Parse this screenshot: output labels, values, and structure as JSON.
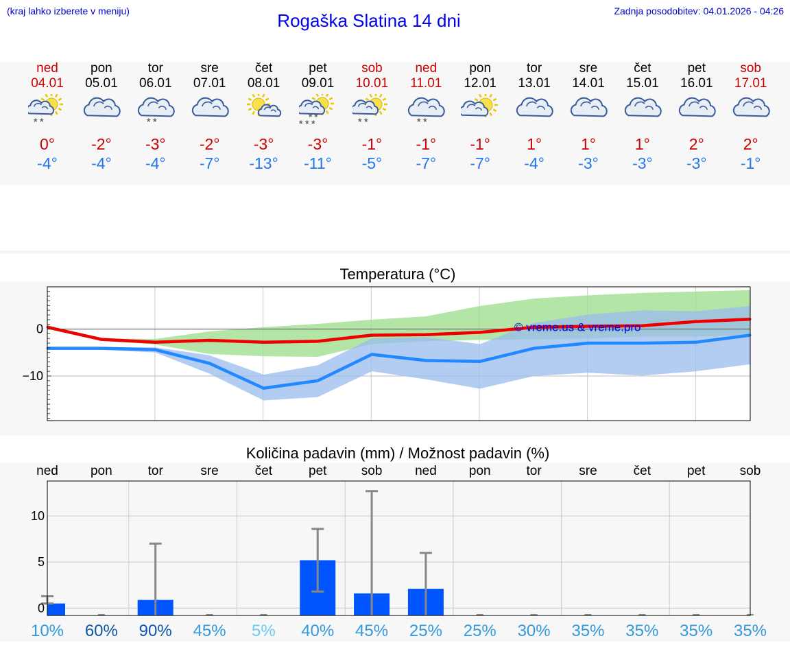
{
  "header": {
    "note": "(kraj lahko izberete v meniju)",
    "title": "Rogaška Slatina 14 dni",
    "updated": "Zadnja posodobitev: 04.01.2026 - 04:26"
  },
  "colors": {
    "max_temp": "#cc0000",
    "min_temp": "#2277ee",
    "bar": "#0055ff",
    "error_bar": "#808080"
  },
  "days": [
    {
      "name": "ned",
      "date": "04.01",
      "weekend": true,
      "icon": "sun-cloud-snow-icon",
      "max": "0°",
      "min": "-4°"
    },
    {
      "name": "pon",
      "date": "05.01",
      "weekend": false,
      "icon": "cloud-icon",
      "max": "-2°",
      "min": "-4°"
    },
    {
      "name": "tor",
      "date": "06.01",
      "weekend": false,
      "icon": "cloud-snow-icon",
      "max": "-3°",
      "min": "-4°"
    },
    {
      "name": "sre",
      "date": "07.01",
      "weekend": false,
      "icon": "cloud-icon",
      "max": "-2°",
      "min": "-7°"
    },
    {
      "name": "čet",
      "date": "08.01",
      "weekend": false,
      "icon": "sun-small-cloud-icon",
      "max": "-3°",
      "min": "-13°"
    },
    {
      "name": "pet",
      "date": "09.01",
      "weekend": false,
      "icon": "sun-cloud-heavy-snow-icon",
      "max": "-3°",
      "min": "-11°"
    },
    {
      "name": "sob",
      "date": "10.01",
      "weekend": true,
      "icon": "sun-cloud-snow-icon",
      "max": "-1°",
      "min": "-5°"
    },
    {
      "name": "ned",
      "date": "11.01",
      "weekend": true,
      "icon": "cloud-snow-icon",
      "max": "-1°",
      "min": "-7°"
    },
    {
      "name": "pon",
      "date": "12.01",
      "weekend": false,
      "icon": "sun-cloud-icon",
      "max": "-1°",
      "min": "-7°"
    },
    {
      "name": "tor",
      "date": "13.01",
      "weekend": false,
      "icon": "cloud-icon",
      "max": "1°",
      "min": "-4°"
    },
    {
      "name": "sre",
      "date": "14.01",
      "weekend": false,
      "icon": "cloud-icon",
      "max": "1°",
      "min": "-3°"
    },
    {
      "name": "čet",
      "date": "15.01",
      "weekend": false,
      "icon": "cloud-icon",
      "max": "1°",
      "min": "-3°"
    },
    {
      "name": "pet",
      "date": "16.01",
      "weekend": false,
      "icon": "cloud-icon",
      "max": "2°",
      "min": "-3°"
    },
    {
      "name": "sob",
      "date": "17.01",
      "weekend": true,
      "icon": "cloud-icon",
      "max": "2°",
      "min": "-1°"
    }
  ],
  "chart_data": [
    {
      "type": "line",
      "title": "Temperatura (°C)",
      "watermark": "© vreme.us & vreme.pro",
      "x": [
        0,
        1,
        2,
        3,
        4,
        5,
        6,
        7,
        8,
        9,
        10,
        11,
        12,
        13
      ],
      "ylim": [
        -19.5,
        9
      ],
      "yticks": [
        0,
        -10
      ],
      "ytick_labels": [
        "0",
        "−10"
      ],
      "grid": true,
      "series": [
        {
          "name": "max",
          "color": "#ee0000",
          "values": [
            0.4,
            -2.2,
            -2.8,
            -2.4,
            -2.8,
            -2.6,
            -1.3,
            -1.2,
            -0.7,
            0.4,
            0.6,
            0.7,
            1.6,
            2.1
          ]
        },
        {
          "name": "min",
          "color": "#2288ff",
          "values": [
            -4.1,
            -4.1,
            -4.4,
            -7.3,
            -12.6,
            -11.0,
            -5.4,
            -6.7,
            -6.9,
            -4.1,
            -3.0,
            -3.0,
            -2.8,
            -1.3
          ]
        }
      ],
      "bands": [
        {
          "name": "max-range",
          "color": "#99dd88",
          "lower": [
            0.0,
            -2.5,
            -3.3,
            -5.3,
            -5.8,
            -5.9,
            -3.2,
            -2.6,
            -2.3,
            -2.2,
            -2.0,
            -1.6,
            -1.6,
            -1.2
          ],
          "upper": [
            0.8,
            -2.0,
            -2.1,
            -0.5,
            0.4,
            1.1,
            2.0,
            2.7,
            4.9,
            6.5,
            7.2,
            7.7,
            8.0,
            8.3
          ]
        },
        {
          "name": "min-range",
          "color": "#99bbee",
          "lower": [
            -4.4,
            -4.4,
            -5.0,
            -9.5,
            -15.2,
            -14.5,
            -9.0,
            -10.7,
            -12.7,
            -10.0,
            -9.3,
            -9.9,
            -9.0,
            -7.5
          ],
          "upper": [
            -3.8,
            -3.8,
            -3.9,
            -5.6,
            -9.7,
            -7.7,
            -2.0,
            -1.7,
            -3.2,
            1.3,
            3.1,
            4.0,
            3.8,
            4.9
          ]
        }
      ]
    },
    {
      "type": "bar",
      "title": "Količina padavin (mm) / Možnost padavin (%)",
      "categories": [
        "ned",
        "pon",
        "tor",
        "sre",
        "čet",
        "pet",
        "sob",
        "ned",
        "pon",
        "tor",
        "sre",
        "čet",
        "pet",
        "sob"
      ],
      "values": [
        0.5,
        0.0,
        0.9,
        0.0,
        0.0,
        5.2,
        1.6,
        2.1,
        0.0,
        0.0,
        0.0,
        0.0,
        0.0,
        0.0
      ],
      "err_low": [
        0.5,
        0.0,
        0.0,
        0.0,
        0.0,
        1.8,
        0.0,
        0.0,
        0.0,
        0.0,
        0.0,
        0.0,
        0.0,
        0.0
      ],
      "err_high": [
        1.3,
        0.0,
        7.0,
        0.0,
        0.0,
        8.6,
        12.7,
        6.0,
        0.0,
        0.0,
        0.0,
        0.0,
        0.0,
        0.0
      ],
      "probability": [
        "10%",
        "60%",
        "90%",
        "45%",
        "5%",
        "40%",
        "45%",
        "25%",
        "25%",
        "30%",
        "35%",
        "35%",
        "35%",
        "35%"
      ],
      "probability_colors": [
        "#3399dd",
        "#1155aa",
        "#1155aa",
        "#3399dd",
        "#66ccee",
        "#3399dd",
        "#3399dd",
        "#3399dd",
        "#3399dd",
        "#3399dd",
        "#3399dd",
        "#3399dd",
        "#3399dd",
        "#3399dd"
      ],
      "ylim": [
        -0.8,
        13.8
      ],
      "yticks": [
        0,
        5,
        10
      ],
      "ytick_labels": [
        "0",
        "5",
        "10"
      ],
      "grid": true
    }
  ]
}
